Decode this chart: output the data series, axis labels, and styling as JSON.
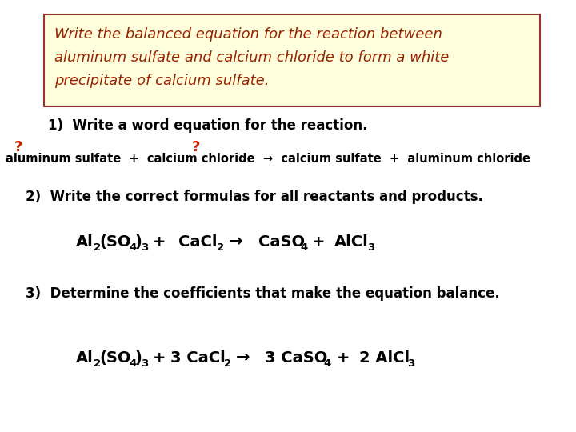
{
  "bg_color": "#ffffff",
  "box_bg": "#ffffdd",
  "box_edge": "#993333",
  "box_text_color": "#992200",
  "black": "#000000",
  "red_q": "#cc2200",
  "box_text_line1": "Write the balanced equation for the reaction between",
  "box_text_line2": "aluminum sulfate and calcium chloride to form a white",
  "box_text_line3": "precipitate of calcium sulfate.",
  "step1_label": "1)  Write a word equation for the reaction.",
  "step2_label": "2)  Write the correct formulas for all reactants and products.",
  "step3_label": "3)  Determine the coefficients that make the equation balance.",
  "word_eq": "aluminum sulfate  +  calcium chloride  →  calcium sulfate  +  aluminum chloride",
  "arrow": "→"
}
